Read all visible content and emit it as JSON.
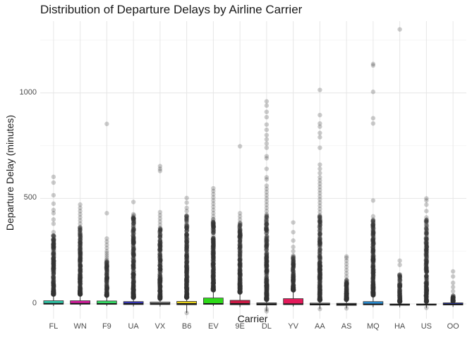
{
  "chart_data": {
    "type": "box",
    "title": "Distribution of Departure Delays by Airline Carrier",
    "xlabel": "Carrier",
    "ylabel": "Departure Delay (minutes)",
    "ylim": [
      -70,
      1340
    ],
    "yticks": [
      0,
      500,
      1000
    ],
    "grid": true,
    "legend": "none",
    "categories": [
      "FL",
      "WN",
      "F9",
      "UA",
      "VX",
      "B6",
      "EV",
      "9E",
      "DL",
      "YV",
      "AA",
      "AS",
      "MQ",
      "HA",
      "US",
      "OO"
    ],
    "colors": [
      "#2ec7a8",
      "#d61b9e",
      "#33d963",
      "#3535b8",
      "#8f8f8f",
      "#e6d01a",
      "#2ed919",
      "#cc1a45",
      "#5c5c5c",
      "#e31a5a",
      "#666666",
      "#555555",
      "#2a8fd6",
      "#505050",
      "#6a6a6a",
      "#2b3bc9"
    ],
    "boxes": [
      {
        "carrier": "FL",
        "q1": -1,
        "median": 1,
        "q3": 15,
        "lo": -10,
        "hi": 45,
        "outlier_max": 602,
        "density": 0.75,
        "extra": [
          602,
          575,
          515,
          475,
          445,
          430,
          400,
          380,
          340,
          320,
          300,
          280,
          260,
          240,
          220,
          200,
          180,
          160,
          140,
          120,
          100,
          85,
          70,
          60,
          50
        ]
      },
      {
        "carrier": "WN",
        "q1": -1,
        "median": 1,
        "q3": 15,
        "lo": -10,
        "hi": 45,
        "outlier_max": 471,
        "density": 0.85,
        "extra": [
          471,
          455,
          440,
          425,
          410,
          395,
          380,
          365,
          350,
          335,
          320,
          305,
          290,
          275,
          260,
          245,
          230,
          215,
          200,
          185,
          170,
          155,
          140,
          125,
          110,
          95,
          80,
          65,
          50
        ]
      },
      {
        "carrier": "F9",
        "q1": -2,
        "median": 0,
        "q3": 14,
        "lo": -10,
        "hi": 40,
        "outlier_max": 853,
        "density": 0.45,
        "extra": [
          853,
          430,
          310,
          295,
          280,
          265,
          250,
          240,
          230,
          220,
          210,
          200,
          190,
          180,
          170,
          160,
          150,
          140,
          130,
          120,
          110,
          100,
          90,
          80,
          70,
          60,
          50
        ]
      },
      {
        "carrier": "UA",
        "q1": -3,
        "median": 0,
        "q3": 11,
        "lo": -12,
        "hi": 30,
        "outlier_max": 483,
        "density": 1,
        "extra": [
          483,
          425,
          410,
          395,
          380,
          365,
          350,
          335,
          320,
          305,
          290,
          275,
          260,
          245,
          230,
          215,
          200,
          185,
          170,
          155,
          140,
          125,
          110,
          95,
          80,
          65,
          50,
          40
        ]
      },
      {
        "carrier": "VX",
        "q1": -3,
        "median": 0,
        "q3": 9,
        "lo": -12,
        "hi": 25,
        "outlier_max": 653,
        "density": 0.85,
        "extra": [
          653,
          640,
          630,
          435,
          420,
          405,
          390,
          375,
          360,
          345,
          330,
          315,
          300,
          285,
          270,
          255,
          240,
          225,
          210,
          195,
          180,
          165,
          150,
          135,
          120,
          105,
          90,
          75,
          60,
          45,
          35
        ]
      },
      {
        "carrier": "B6",
        "q1": -4,
        "median": 0,
        "q3": 12,
        "lo": -43,
        "hi": 30,
        "outlier_max": 502,
        "density": 1,
        "extra": [
          502,
          480,
          455,
          440,
          420,
          405,
          390,
          375,
          360,
          345,
          330,
          315,
          300,
          285,
          270,
          255,
          240,
          225,
          210,
          195,
          180,
          165,
          150,
          135,
          120,
          105,
          90,
          75,
          60,
          45,
          35,
          -43
        ]
      },
      {
        "carrier": "EV",
        "q1": -2,
        "median": 0,
        "q3": 28,
        "lo": -10,
        "hi": 65,
        "outlier_max": 548,
        "density": 0.95,
        "extra": [
          548,
          535,
          520,
          505,
          490,
          475,
          460,
          445,
          430,
          415,
          400,
          385,
          370,
          355,
          340,
          325,
          310,
          295,
          280,
          265,
          250,
          235,
          220,
          205,
          190,
          175,
          160,
          145,
          130,
          115,
          100,
          85,
          70
        ]
      },
      {
        "carrier": "9E",
        "q1": -4,
        "median": 0,
        "q3": 17,
        "lo": -15,
        "hi": 55,
        "outlier_max": 747,
        "density": 0.9,
        "extra": [
          747,
          430,
          415,
          400,
          385,
          370,
          355,
          340,
          325,
          310,
          295,
          280,
          265,
          250,
          235,
          220,
          205,
          190,
          175,
          160,
          145,
          130,
          115,
          100,
          85,
          70,
          60
        ]
      },
      {
        "carrier": "DL",
        "q1": -5,
        "median": -2,
        "q3": 5,
        "lo": -35,
        "hi": 20,
        "outlier_max": 960,
        "density": 1,
        "extra": [
          960,
          940,
          910,
          885,
          850,
          825,
          800,
          780,
          760,
          740,
          700,
          690,
          640,
          600,
          590,
          560,
          545,
          530,
          515,
          500,
          485,
          470,
          455,
          440,
          425,
          410,
          395,
          380,
          365,
          350,
          335,
          320,
          305,
          290,
          275,
          260,
          245,
          230,
          215,
          200,
          185,
          170,
          155,
          140,
          125,
          110,
          95,
          80,
          65,
          50,
          35,
          25,
          -25,
          -35
        ]
      },
      {
        "carrier": "YV",
        "q1": -3,
        "median": -1,
        "q3": 25,
        "lo": -12,
        "hi": 65,
        "outlier_max": 386,
        "density": 0.5,
        "extra": [
          386,
          340,
          300,
          270,
          250,
          230,
          215,
          200,
          185,
          170,
          155,
          140,
          125,
          110,
          95,
          85,
          75
        ]
      },
      {
        "carrier": "AA",
        "q1": -5,
        "median": -3,
        "q3": 4,
        "lo": -24,
        "hi": 18,
        "outlier_max": 1014,
        "density": 1,
        "extra": [
          1014,
          895,
          855,
          840,
          810,
          790,
          740,
          660,
          640,
          620,
          600,
          585,
          570,
          555,
          540,
          525,
          510,
          495,
          480,
          465,
          450,
          435,
          420,
          405,
          390,
          375,
          360,
          345,
          330,
          315,
          300,
          285,
          270,
          255,
          240,
          225,
          210,
          195,
          180,
          165,
          150,
          135,
          120,
          105,
          90,
          75,
          60,
          45,
          30,
          20,
          -24
        ]
      },
      {
        "carrier": "AS",
        "q1": -7,
        "median": -3,
        "q3": 3,
        "lo": -21,
        "hi": 20,
        "outlier_max": 225,
        "density": 0.45,
        "extra": [
          225,
          218,
          205,
          190,
          175,
          160,
          145,
          130,
          115,
          100,
          90,
          80,
          70,
          60,
          50,
          40,
          30,
          -21
        ]
      },
      {
        "carrier": "MQ",
        "q1": -4,
        "median": -2,
        "q3": 11,
        "lo": -15,
        "hi": 40,
        "outlier_max": 1137,
        "density": 0.95,
        "extra": [
          1137,
          1130,
          1005,
          880,
          855,
          490,
          415,
          400,
          385,
          370,
          355,
          340,
          325,
          310,
          295,
          280,
          265,
          250,
          235,
          220,
          205,
          190,
          175,
          160,
          145,
          130,
          115,
          100,
          85,
          70,
          55,
          45
        ]
      },
      {
        "carrier": "HA",
        "q1": -6,
        "median": -4,
        "q3": 0,
        "lo": -16,
        "hi": 10,
        "outlier_max": 1301,
        "density": 0.35,
        "extra": [
          1301,
          205,
          185,
          130,
          120,
          110,
          100,
          90,
          80,
          70,
          60,
          50,
          40,
          30,
          20,
          15
        ]
      },
      {
        "carrier": "US",
        "q1": -5,
        "median": -4,
        "q3": 0,
        "lo": -19,
        "hi": 10,
        "outlier_max": 500,
        "density": 0.95,
        "extra": [
          500,
          490,
          470,
          440,
          410,
          380,
          345,
          330,
          315,
          300,
          285,
          270,
          255,
          240,
          225,
          210,
          195,
          180,
          165,
          150,
          135,
          120,
          105,
          90,
          75,
          60,
          45,
          30,
          20,
          -19
        ]
      },
      {
        "carrier": "OO",
        "q1": -5,
        "median": -2,
        "q3": 5,
        "lo": -14,
        "hi": 12,
        "outlier_max": 154,
        "density": 0.2,
        "extra": [
          154,
          130,
          100,
          80,
          60,
          40,
          30,
          20
        ]
      }
    ]
  }
}
